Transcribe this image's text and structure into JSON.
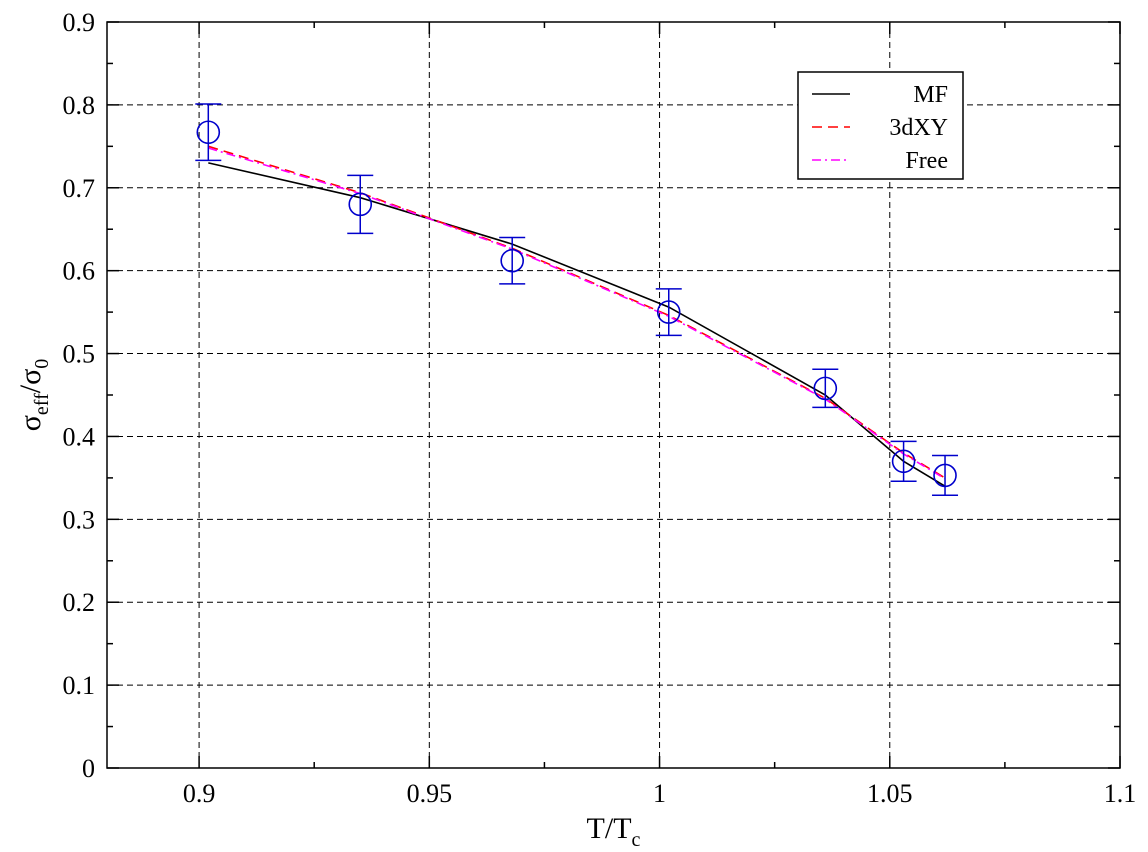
{
  "chart_data": {
    "type": "line",
    "xlabel": {
      "main": "T/T",
      "sub": "c"
    },
    "ylabel": {
      "main": "σ",
      "sub1": "eff",
      "mid": "/σ",
      "sub2": "0"
    },
    "xlim": [
      0.88,
      1.1
    ],
    "ylim": [
      0,
      0.9
    ],
    "xticks": [
      0.9,
      0.95,
      1,
      1.05,
      1.1
    ],
    "xtick_labels": [
      "0.9",
      "0.95",
      "1",
      "1.05",
      "1.1"
    ],
    "yticks": [
      0,
      0.1,
      0.2,
      0.3,
      0.4,
      0.5,
      0.6,
      0.7,
      0.8,
      0.9
    ],
    "ytick_labels": [
      "0",
      "0.1",
      "0.2",
      "0.3",
      "0.4",
      "0.5",
      "0.6",
      "0.7",
      "0.8",
      "0.9"
    ],
    "grid": true,
    "legend_position": "top-right",
    "points": {
      "x": [
        0.902,
        0.935,
        0.968,
        1.002,
        1.036,
        1.053,
        1.062
      ],
      "y": [
        0.767,
        0.68,
        0.612,
        0.55,
        0.458,
        0.37,
        0.353
      ],
      "yerr": [
        0.034,
        0.035,
        0.028,
        0.028,
        0.023,
        0.024,
        0.024
      ],
      "color": "#0000cc"
    },
    "series": [
      {
        "name": "MF",
        "color": "#000000",
        "dash": "solid",
        "x": [
          0.902,
          0.935,
          0.968,
          1.002,
          1.036,
          1.053,
          1.062
        ],
        "y": [
          0.73,
          0.688,
          0.632,
          0.556,
          0.45,
          0.37,
          0.34
        ]
      },
      {
        "name": "3dXY",
        "color": "#ff0000",
        "dash": "dashed",
        "x": [
          0.902,
          0.935,
          0.968,
          1.002,
          1.036,
          1.053,
          1.062
        ],
        "y": [
          0.75,
          0.694,
          0.627,
          0.546,
          0.446,
          0.38,
          0.35
        ]
      },
      {
        "name": "Free",
        "color": "#ff00ff",
        "dash": "dashdot",
        "x": [
          0.902,
          0.935,
          0.968,
          1.002,
          1.036,
          1.053,
          1.062
        ],
        "y": [
          0.748,
          0.693,
          0.626,
          0.545,
          0.445,
          0.379,
          0.349
        ]
      }
    ]
  }
}
